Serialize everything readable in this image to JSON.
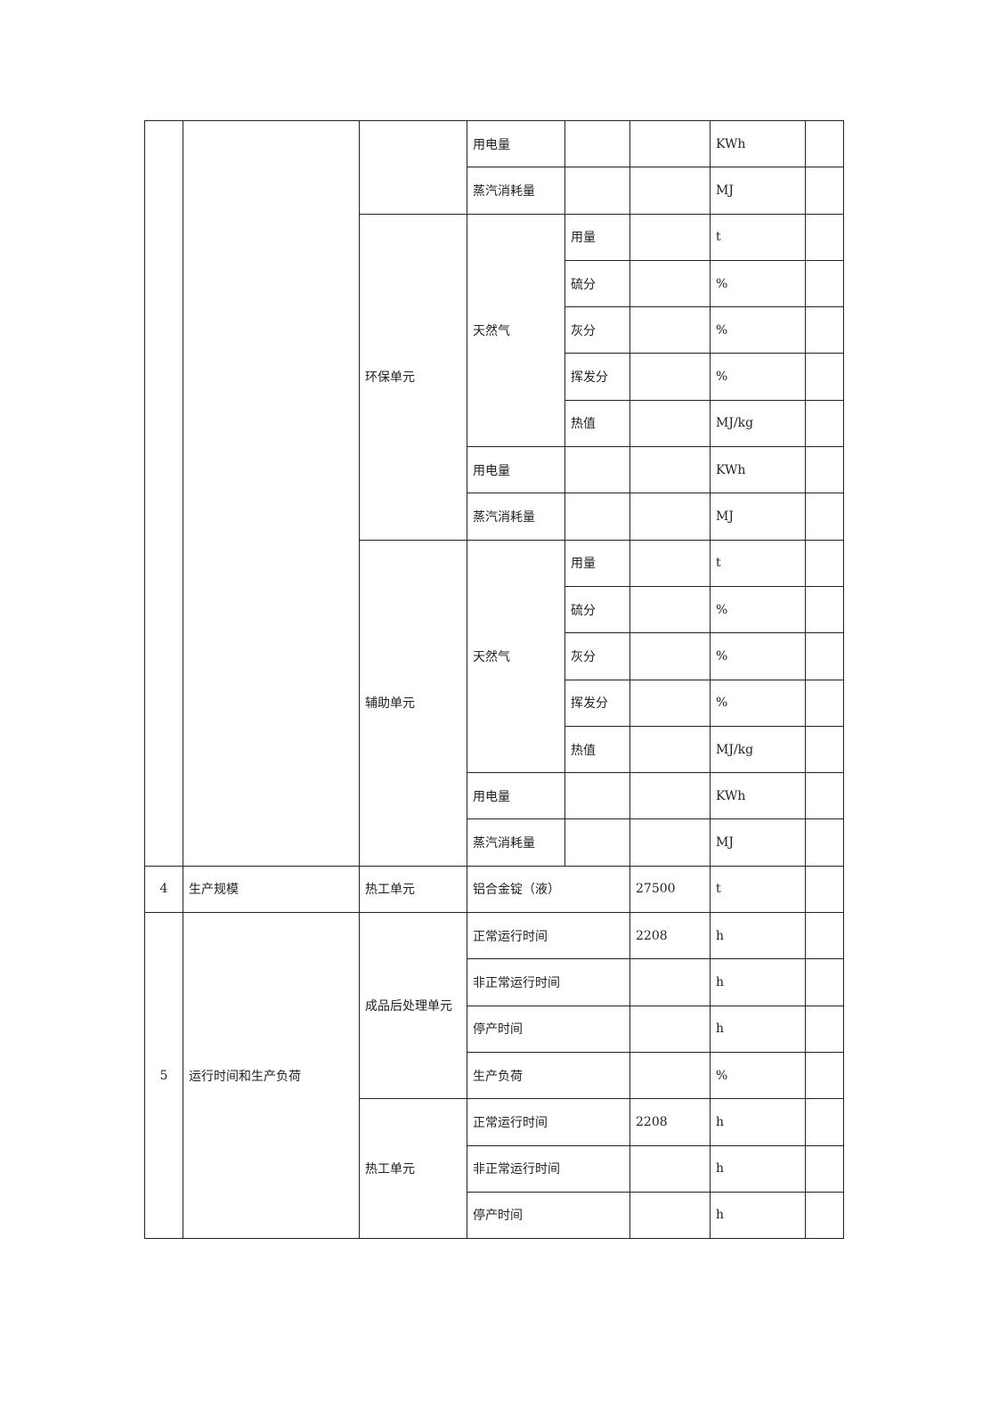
{
  "units": {
    "kwh": "KWh",
    "mj": "MJ",
    "t": "t",
    "pct": "%",
    "mjkg": "MJ/kg",
    "h": "h"
  },
  "labels": {
    "power": "用电量",
    "steam": "蒸汽消耗量",
    "gas": "天然气",
    "amount": "用量",
    "sulfur": "硫分",
    "ash": "灰分",
    "volatile": "挥发分",
    "heat": "热值",
    "normal": "正常运行时间",
    "abnormal": "非正常运行时间",
    "stop": "停产时间",
    "load": "生产负荷"
  },
  "units_env": "环保单元",
  "units_aux": "辅助单元",
  "units_thermal": "热工单元",
  "units_post": "成品后处理单元",
  "row4": {
    "no": "4",
    "item": "生产规模",
    "unit": "热工单元",
    "product": "铝合金锭（液）",
    "value": "27500",
    "measure": "t"
  },
  "row5": {
    "no": "5",
    "item": "运行时间和生产负荷",
    "post_normal_value": "2208",
    "thermal_normal_value": "2208"
  }
}
